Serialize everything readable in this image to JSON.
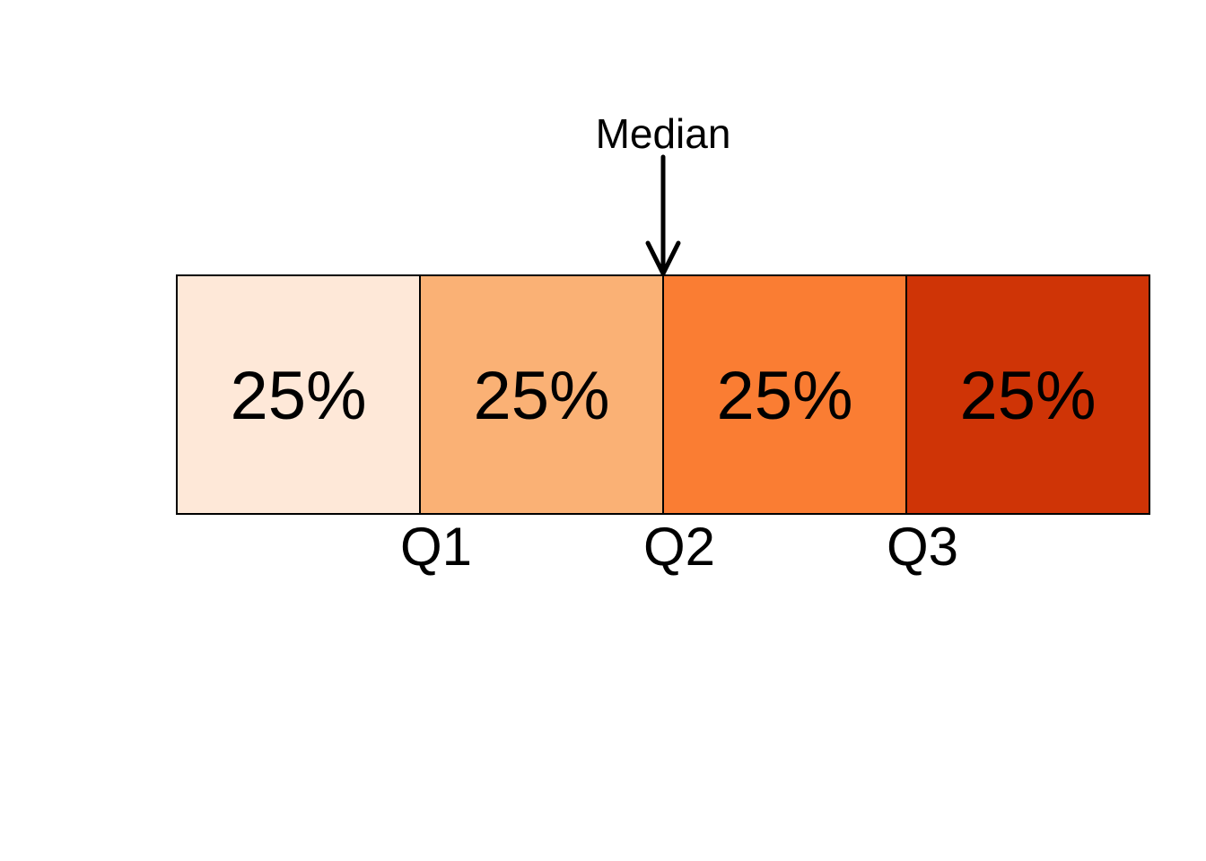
{
  "diagram": {
    "segments": [
      {
        "label": "25%",
        "share": 25,
        "color": "#FEE8D8"
      },
      {
        "label": "25%",
        "share": 25,
        "color": "#FAB175"
      },
      {
        "label": "25%",
        "share": 25,
        "color": "#FA7D33"
      },
      {
        "label": "25%",
        "share": 25,
        "color": "#CF3406"
      }
    ],
    "quartile_labels": [
      "Q1",
      "Q2",
      "Q3"
    ],
    "median": {
      "label": "Median",
      "points_to": "Q2"
    },
    "border_color": "#000000"
  }
}
